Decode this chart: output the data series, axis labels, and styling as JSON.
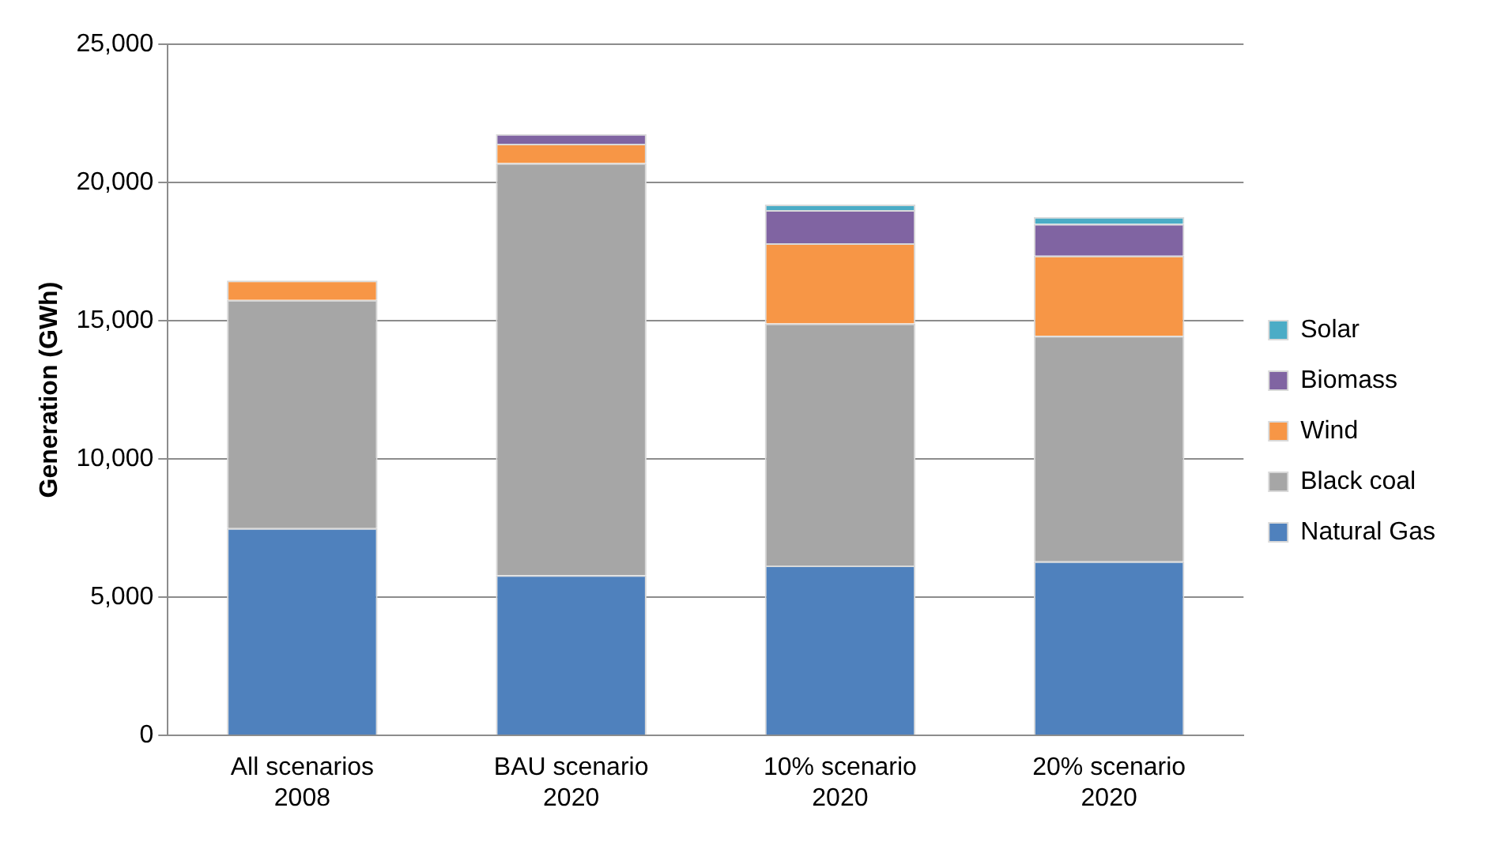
{
  "chart_data": {
    "type": "bar",
    "stacked": true,
    "ylabel": "Generation (GWh)",
    "categories": [
      "All scenarios 2008",
      "BAU scenario 2020",
      "10% scenario 2020",
      "20% scenario 2020"
    ],
    "series": [
      {
        "name": "Natural Gas",
        "color": "#4f81bd",
        "values": [
          7500,
          5800,
          6150,
          6300
        ]
      },
      {
        "name": "Black coal",
        "color": "#a6a6a6",
        "values": [
          8250,
          14900,
          8750,
          8150
        ]
      },
      {
        "name": "Wind",
        "color": "#f79646",
        "values": [
          700,
          700,
          2900,
          2900
        ]
      },
      {
        "name": "Biomass",
        "color": "#8064a2",
        "values": [
          null,
          350,
          1200,
          1150
        ]
      },
      {
        "name": "Solar",
        "color": "#4bacc6",
        "values": [
          null,
          null,
          200,
          250
        ]
      }
    ],
    "ylim": [
      0,
      25000
    ],
    "yticks": [
      0,
      {
        "value": 5000,
        "label": "5,000"
      },
      {
        "value": 10000,
        "label": "10,000"
      },
      {
        "value": 15000,
        "label": "15,000"
      },
      {
        "value": 20000,
        "label": "20,000"
      },
      {
        "value": 25000,
        "label": "25,000"
      }
    ],
    "grid": "y",
    "legend": "right"
  }
}
